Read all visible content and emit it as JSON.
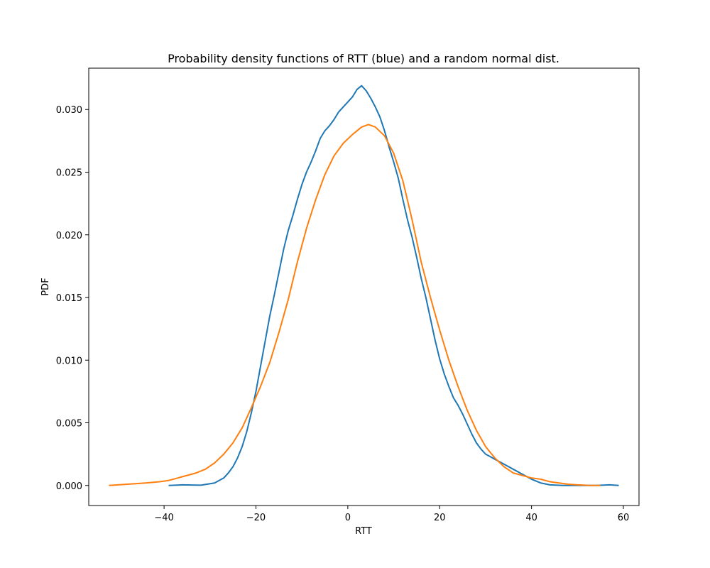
{
  "chart_data": {
    "type": "line",
    "title": "Probability density functions of RTT (blue) and a random normal dist.",
    "xlabel": "RTT",
    "ylabel": "PDF",
    "xlim": [
      -56.4,
      63.4
    ],
    "ylim": [
      -0.0016,
      0.0333
    ],
    "grid": false,
    "x_ticks": [
      -40,
      -20,
      0,
      20,
      40,
      60
    ],
    "x_tick_labels": [
      "−40",
      "−20",
      "0",
      "20",
      "40",
      "60"
    ],
    "y_ticks": [
      0.0,
      0.005,
      0.01,
      0.015,
      0.02,
      0.025,
      0.03
    ],
    "y_tick_labels": [
      "0.000",
      "0.005",
      "0.010",
      "0.015",
      "0.020",
      "0.025",
      "0.030"
    ],
    "series": [
      {
        "color": "#1f77b4",
        "points": [
          [
            -39,
            0.0
          ],
          [
            -36,
            5e-05
          ],
          [
            -32,
            2e-05
          ],
          [
            -29,
            0.0002
          ],
          [
            -27,
            0.0006
          ],
          [
            -26,
            0.001
          ],
          [
            -25,
            0.0015
          ],
          [
            -24,
            0.0022
          ],
          [
            -23,
            0.0031
          ],
          [
            -22,
            0.0043
          ],
          [
            -21,
            0.0058
          ],
          [
            -20,
            0.0075
          ],
          [
            -19,
            0.0095
          ],
          [
            -18,
            0.0115
          ],
          [
            -17,
            0.0135
          ],
          [
            -16,
            0.0152
          ],
          [
            -15,
            0.017
          ],
          [
            -14,
            0.0188
          ],
          [
            -13,
            0.0203
          ],
          [
            -12,
            0.0215
          ],
          [
            -11,
            0.0228
          ],
          [
            -10,
            0.024
          ],
          [
            -9,
            0.025
          ],
          [
            -8,
            0.0258
          ],
          [
            -7,
            0.0267
          ],
          [
            -6,
            0.0277
          ],
          [
            -5,
            0.0283
          ],
          [
            -4,
            0.0287
          ],
          [
            -3,
            0.0292
          ],
          [
            -2,
            0.0298
          ],
          [
            -1,
            0.0302
          ],
          [
            0,
            0.0306
          ],
          [
            1,
            0.031
          ],
          [
            2,
            0.0316
          ],
          [
            3,
            0.0319
          ],
          [
            4,
            0.0315
          ],
          [
            5,
            0.0309
          ],
          [
            6,
            0.0302
          ],
          [
            7,
            0.0294
          ],
          [
            8,
            0.0283
          ],
          [
            9,
            0.027
          ],
          [
            10,
            0.0258
          ],
          [
            11,
            0.0245
          ],
          [
            12,
            0.0228
          ],
          [
            13,
            0.0212
          ],
          [
            14,
            0.0198
          ],
          [
            15,
            0.0182
          ],
          [
            16,
            0.0165
          ],
          [
            17,
            0.015
          ],
          [
            18,
            0.0133
          ],
          [
            19,
            0.0116
          ],
          [
            20,
            0.0101
          ],
          [
            21,
            0.0089
          ],
          [
            22,
            0.0079
          ],
          [
            23,
            0.007
          ],
          [
            24,
            0.0064
          ],
          [
            25,
            0.0057
          ],
          [
            26,
            0.0049
          ],
          [
            27,
            0.0041
          ],
          [
            28,
            0.0034
          ],
          [
            29,
            0.0029
          ],
          [
            30,
            0.0025
          ],
          [
            31,
            0.0023
          ],
          [
            32,
            0.0021
          ],
          [
            34,
            0.0017
          ],
          [
            36,
            0.0013
          ],
          [
            38,
            0.0009
          ],
          [
            40,
            0.0005
          ],
          [
            42,
            0.0002
          ],
          [
            44,
            5e-05
          ],
          [
            47,
            0.0
          ],
          [
            50,
            0.0
          ],
          [
            54,
            0.0
          ],
          [
            57,
            5e-05
          ],
          [
            59,
            0.0
          ]
        ]
      },
      {
        "color": "#ff7f0e",
        "points": [
          [
            -52,
            0.0
          ],
          [
            -48,
            0.0001
          ],
          [
            -44,
            0.0002
          ],
          [
            -41,
            0.0003
          ],
          [
            -39,
            0.0004
          ],
          [
            -37,
            0.0006
          ],
          [
            -35,
            0.0008
          ],
          [
            -33,
            0.001
          ],
          [
            -31,
            0.0013
          ],
          [
            -29,
            0.0018
          ],
          [
            -27,
            0.0025
          ],
          [
            -25,
            0.0034
          ],
          [
            -23,
            0.0046
          ],
          [
            -21,
            0.0062
          ],
          [
            -19,
            0.0079
          ],
          [
            -17,
            0.0098
          ],
          [
            -15,
            0.0122
          ],
          [
            -13,
            0.0148
          ],
          [
            -11,
            0.0178
          ],
          [
            -9,
            0.0205
          ],
          [
            -7,
            0.0228
          ],
          [
            -5,
            0.0248
          ],
          [
            -3,
            0.0263
          ],
          [
            -1,
            0.0273
          ],
          [
            1,
            0.028
          ],
          [
            3,
            0.0286
          ],
          [
            4.5,
            0.0288
          ],
          [
            6,
            0.0286
          ],
          [
            8,
            0.0279
          ],
          [
            10,
            0.0265
          ],
          [
            12,
            0.0243
          ],
          [
            14,
            0.0212
          ],
          [
            16,
            0.0178
          ],
          [
            18,
            0.015
          ],
          [
            20,
            0.0124
          ],
          [
            22,
            0.01
          ],
          [
            24,
            0.0079
          ],
          [
            26,
            0.006
          ],
          [
            28,
            0.0044
          ],
          [
            30,
            0.0031
          ],
          [
            32,
            0.0022
          ],
          [
            34,
            0.0015
          ],
          [
            36,
            0.001
          ],
          [
            38,
            0.0008
          ],
          [
            40,
            0.0006
          ],
          [
            42,
            0.0005
          ],
          [
            44,
            0.0003
          ],
          [
            46,
            0.0002
          ],
          [
            48,
            0.0001
          ],
          [
            50,
            5e-05
          ],
          [
            53,
            0.0
          ],
          [
            55,
            0.0
          ]
        ]
      }
    ]
  }
}
